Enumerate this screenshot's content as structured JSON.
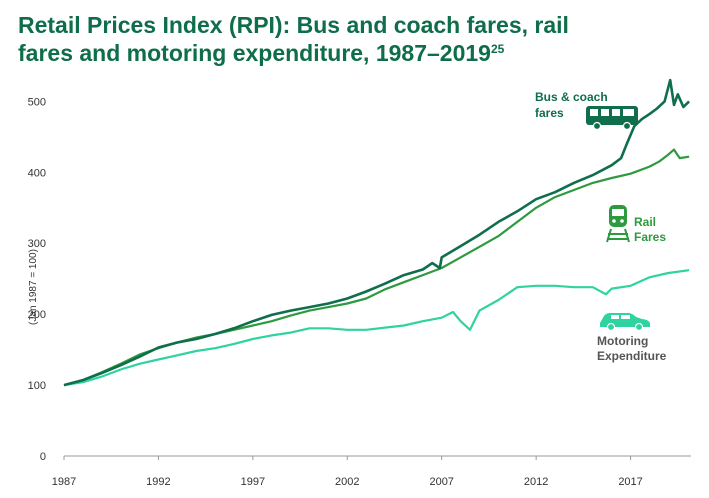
{
  "title": {
    "line1": "Retail Prices Index (RPI): Bus and coach fares, rail",
    "line2": "fares and motoring expenditure, 1987–2019",
    "footnote": "25"
  },
  "colors": {
    "title": "#0e6d4a",
    "bus": "#0f6e4c",
    "rail": "#2d9a3f",
    "motor": "#2fd3a0"
  },
  "chart_data": {
    "type": "line",
    "title": "Retail Prices Index (RPI): Bus and coach fares, rail fares and motoring expenditure, 1987–2019",
    "xlabel": "",
    "ylabel": "(Jan 1987 = 100)",
    "xlim": [
      1987,
      2020.2
    ],
    "ylim": [
      0,
      540
    ],
    "x_ticks": [
      "1987",
      "1992",
      "1997",
      "2002",
      "2007",
      "2012",
      "2017"
    ],
    "y_ticks": [
      "0",
      "100",
      "200",
      "300",
      "400",
      "500"
    ],
    "grid": false,
    "series": [
      {
        "name": "Bus & coach fares",
        "label_lines": [
          "Bus & coach",
          "fares"
        ],
        "icon": "bus-icon",
        "x": [
          1987,
          1988,
          1989,
          1990,
          1991,
          1992,
          1993,
          1994,
          1995,
          1996,
          1997,
          1998,
          1999,
          2000,
          2001,
          2002,
          2003,
          2004,
          2005,
          2006,
          2006.5,
          2006.9,
          2007,
          2008,
          2009,
          2010,
          2011,
          2012,
          2013,
          2014,
          2015,
          2016,
          2016.5,
          2016.8,
          2017.2,
          2017.6,
          2018,
          2018.4,
          2018.8,
          2019.1,
          2019.3,
          2019.5,
          2019.8,
          2020.1
        ],
        "values": [
          100,
          107,
          117,
          128,
          140,
          153,
          160,
          165,
          172,
          180,
          190,
          199,
          205,
          210,
          215,
          222,
          232,
          243,
          255,
          263,
          272,
          265,
          280,
          296,
          312,
          330,
          345,
          362,
          372,
          385,
          396,
          410,
          420,
          440,
          465,
          475,
          482,
          490,
          500,
          530,
          495,
          510,
          492,
          500
        ]
      },
      {
        "name": "Rail Fares",
        "label_lines": [
          "Rail",
          "Fares"
        ],
        "icon": "train-icon",
        "x": [
          1987,
          1988,
          1989,
          1990,
          1991,
          1992,
          1993,
          1994,
          1995,
          1996,
          1997,
          1998,
          1999,
          2000,
          2001,
          2002,
          2003,
          2004,
          2005,
          2006,
          2007,
          2008,
          2009,
          2010,
          2011,
          2012,
          2013,
          2014,
          2015,
          2016,
          2017,
          2018,
          2018.5,
          2019,
          2019.3,
          2019.6,
          2020.1
        ],
        "values": [
          100,
          107,
          118,
          130,
          143,
          152,
          160,
          167,
          172,
          178,
          184,
          190,
          198,
          205,
          210,
          215,
          222,
          235,
          245,
          255,
          265,
          280,
          295,
          310,
          330,
          350,
          365,
          375,
          385,
          392,
          398,
          408,
          415,
          425,
          432,
          420,
          422
        ]
      },
      {
        "name": "Motoring Expenditure",
        "label_lines": [
          "Motoring",
          "Expenditure"
        ],
        "icon": "car-icon",
        "x": [
          1987,
          1988,
          1989,
          1990,
          1991,
          1992,
          1993,
          1994,
          1995,
          1996,
          1997,
          1998,
          1999,
          2000,
          2001,
          2002,
          2003,
          2004,
          2005,
          2006,
          2007,
          2007.6,
          2008,
          2008.5,
          2009,
          2010,
          2011,
          2012,
          2013,
          2014,
          2015,
          2015.7,
          2016,
          2017,
          2018,
          2019,
          2020.1
        ],
        "values": [
          100,
          104,
          112,
          122,
          130,
          136,
          142,
          148,
          152,
          158,
          165,
          170,
          174,
          180,
          180,
          178,
          178,
          181,
          184,
          190,
          195,
          203,
          190,
          178,
          205,
          220,
          238,
          240,
          240,
          238,
          238,
          228,
          236,
          240,
          252,
          258,
          262
        ]
      }
    ]
  }
}
